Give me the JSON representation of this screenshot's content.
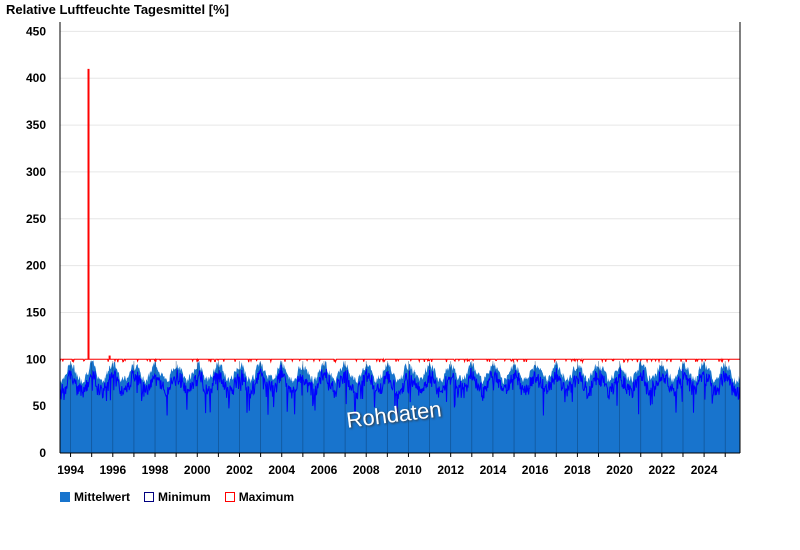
{
  "chart_data": {
    "type": "line",
    "title": "Relative Luftfeuchte Tagesmittel [%]",
    "ylim": [
      0,
      460
    ],
    "yticks": [
      0,
      50,
      100,
      150,
      200,
      250,
      300,
      350,
      400,
      450
    ],
    "xlim": [
      1993.5,
      2025.7
    ],
    "xticks": [
      1994,
      1996,
      1998,
      2000,
      2002,
      2004,
      2006,
      2008,
      2010,
      2012,
      2014,
      2016,
      2018,
      2020,
      2022,
      2024
    ],
    "grid": true,
    "legend_position": "bottom-left",
    "series": [
      {
        "name": "Mittelwert",
        "color": "#1874cd",
        "style": "filled-area",
        "typical_range": [
          50,
          100
        ]
      },
      {
        "name": "Minimum",
        "color": "#0000ff",
        "style": "line",
        "typical_range": [
          40,
          100
        ]
      },
      {
        "name": "Maximum",
        "color": "#ff0000",
        "style": "line",
        "typical_range": [
          95,
          102
        ],
        "spikes": [
          {
            "x": 1994.85,
            "y": 410
          },
          {
            "x": 1995.85,
            "y": 104
          }
        ]
      }
    ],
    "annotation": "Rohdaten"
  }
}
